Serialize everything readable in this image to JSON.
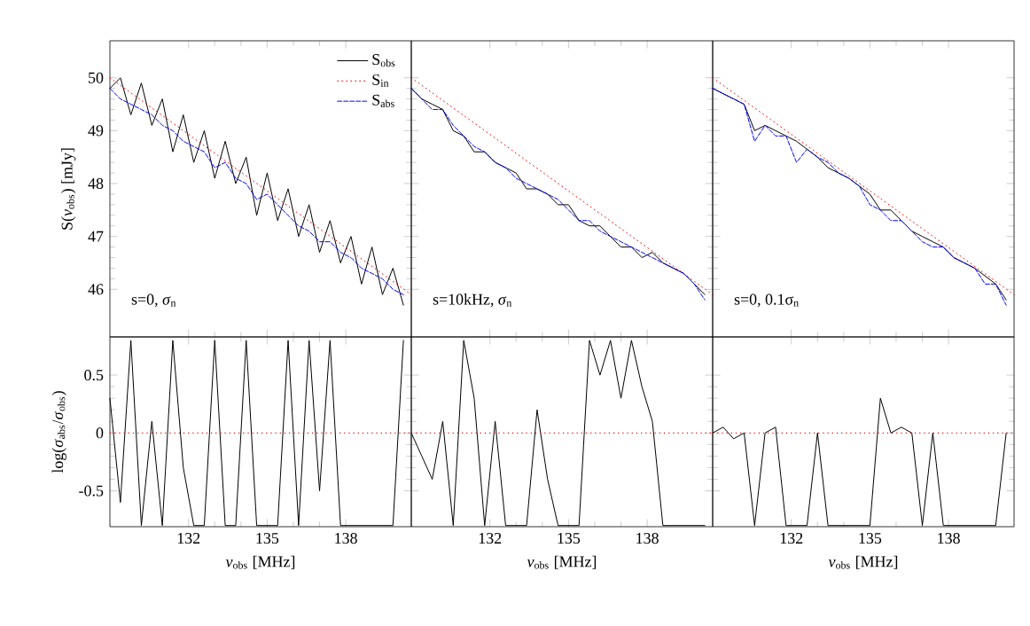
{
  "chart_data": [
    {
      "type": "line",
      "ylabel": "S(*ν*$_{obs}$) [mJy]",
      "xlim": [
        129,
        140.5
      ],
      "xticks": [
        132,
        135,
        138
      ],
      "ylim": [
        45.1,
        50.7
      ],
      "yticks": [
        46,
        47,
        48,
        49,
        50
      ],
      "tick_labels": "y",
      "legend": "top right",
      "annotations": [
        "s=0, *σ*$_{n}$"
      ],
      "series": [
        {
          "name": "S$_{obs}$",
          "color": "#000000",
          "line_style": "solid",
          "x": [
            129.0,
            129.4,
            129.8,
            130.2,
            130.6,
            131.0,
            131.4,
            131.8,
            132.2,
            132.6,
            133.0,
            133.4,
            133.8,
            134.2,
            134.6,
            135.0,
            135.4,
            135.8,
            136.2,
            136.6,
            137.0,
            137.4,
            137.8,
            138.2,
            138.6,
            139.0,
            139.4,
            139.8,
            140.2
          ],
          "values": [
            49.8,
            50.0,
            49.3,
            49.9,
            49.1,
            49.6,
            48.6,
            49.3,
            48.4,
            49.0,
            48.1,
            48.8,
            48.0,
            48.5,
            47.4,
            48.2,
            47.3,
            47.9,
            47.0,
            47.6,
            46.7,
            47.3,
            46.5,
            47.0,
            46.1,
            46.8,
            45.9,
            46.4,
            45.7
          ]
        },
        {
          "name": "S$_{in}$",
          "color": "#ff0000",
          "line_style": "dotted",
          "x": [
            129.0,
            140.5
          ],
          "values": [
            50.0,
            45.9
          ]
        },
        {
          "name": "S$_{abs}$",
          "color": "#0000ff",
          "line_style": "dashed",
          "x": [
            129.0,
            129.4,
            129.8,
            130.2,
            130.6,
            131.0,
            131.4,
            131.8,
            132.2,
            132.6,
            133.0,
            133.4,
            133.8,
            134.2,
            134.6,
            135.0,
            135.4,
            135.8,
            136.2,
            136.6,
            137.0,
            137.4,
            137.8,
            138.2,
            138.6,
            139.0,
            139.4,
            139.8,
            140.2
          ],
          "values": [
            49.8,
            49.6,
            49.5,
            49.4,
            49.3,
            49.1,
            49.0,
            48.8,
            48.7,
            48.6,
            48.3,
            48.4,
            48.1,
            48.0,
            47.7,
            47.8,
            47.6,
            47.4,
            47.2,
            47.1,
            46.9,
            46.9,
            46.7,
            46.6,
            46.4,
            46.3,
            46.2,
            46.0,
            45.9
          ]
        }
      ]
    },
    {
      "type": "line",
      "xlim": [
        129,
        140.5
      ],
      "xticks": [
        132,
        135,
        138
      ],
      "ylim": [
        45.1,
        50.7
      ],
      "yticks": [
        46,
        47,
        48,
        49,
        50
      ],
      "tick_labels": false,
      "annotations": [
        "s=10kHz, *σ*$_{n}$"
      ],
      "series": [
        {
          "color": "#000000",
          "line_style": "solid",
          "x": [
            129.0,
            129.4,
            129.8,
            130.2,
            130.6,
            131.0,
            131.4,
            131.8,
            132.2,
            132.6,
            133.0,
            133.4,
            133.8,
            134.2,
            134.6,
            135.0,
            135.4,
            135.8,
            136.2,
            136.6,
            137.0,
            137.4,
            137.8,
            138.2,
            138.6,
            139.0,
            139.4,
            139.8,
            140.2
          ],
          "values": [
            49.8,
            49.6,
            49.5,
            49.4,
            49.0,
            48.9,
            48.6,
            48.6,
            48.4,
            48.3,
            48.2,
            47.9,
            47.9,
            47.8,
            47.6,
            47.6,
            47.3,
            47.2,
            47.2,
            47.0,
            46.8,
            46.8,
            46.6,
            46.7,
            46.5,
            46.4,
            46.3,
            46.1,
            45.9
          ]
        },
        {
          "color": "#ff0000",
          "line_style": "dotted",
          "x": [
            129.0,
            140.5
          ],
          "values": [
            50.0,
            45.9
          ]
        },
        {
          "color": "#0000ff",
          "line_style": "dashed",
          "x": [
            129.0,
            129.4,
            129.8,
            130.2,
            130.6,
            131.0,
            131.4,
            131.8,
            132.2,
            132.6,
            133.0,
            133.4,
            133.8,
            134.2,
            134.6,
            135.0,
            135.4,
            135.8,
            136.2,
            136.6,
            137.0,
            137.4,
            137.8,
            138.2,
            138.6,
            139.0,
            139.4,
            139.8,
            140.2
          ],
          "values": [
            49.8,
            49.6,
            49.4,
            49.4,
            49.1,
            48.9,
            48.7,
            48.6,
            48.4,
            48.3,
            48.1,
            48.0,
            47.9,
            47.8,
            47.7,
            47.5,
            47.3,
            47.3,
            47.1,
            47.0,
            46.9,
            46.8,
            46.7,
            46.6,
            46.5,
            46.4,
            46.3,
            46.1,
            45.8
          ]
        }
      ]
    },
    {
      "type": "line",
      "xlim": [
        129,
        140.5
      ],
      "xticks": [
        132,
        135,
        138
      ],
      "ylim": [
        45.1,
        50.7
      ],
      "yticks": [
        46,
        47,
        48,
        49,
        50
      ],
      "tick_labels": false,
      "annotations": [
        "s=0, 0.1σ$_{n}$"
      ],
      "series": [
        {
          "color": "#000000",
          "line_style": "solid",
          "x": [
            129.0,
            129.4,
            129.8,
            130.2,
            130.6,
            131.0,
            131.4,
            131.8,
            132.2,
            132.6,
            133.0,
            133.4,
            133.8,
            134.2,
            134.6,
            135.0,
            135.4,
            135.8,
            136.2,
            136.6,
            137.0,
            137.4,
            137.8,
            138.2,
            138.6,
            139.0,
            139.4,
            139.8,
            140.2
          ],
          "values": [
            49.8,
            49.7,
            49.6,
            49.5,
            49.0,
            49.1,
            49.0,
            48.9,
            48.8,
            48.65,
            48.5,
            48.3,
            48.2,
            48.1,
            47.95,
            47.8,
            47.5,
            47.5,
            47.3,
            47.1,
            47.0,
            46.9,
            46.8,
            46.6,
            46.5,
            46.4,
            46.25,
            46.1,
            45.8
          ]
        },
        {
          "color": "#ff0000",
          "line_style": "dotted",
          "x": [
            129.0,
            140.5
          ],
          "values": [
            50.0,
            45.9
          ]
        },
        {
          "color": "#0000ff",
          "line_style": "dashed",
          "x": [
            129.0,
            129.4,
            129.8,
            130.2,
            130.6,
            131.0,
            131.4,
            131.8,
            132.2,
            132.6,
            133.0,
            133.4,
            133.8,
            134.2,
            134.6,
            135.0,
            135.4,
            135.8,
            136.2,
            136.6,
            137.0,
            137.4,
            137.8,
            138.2,
            138.6,
            139.0,
            139.4,
            139.8,
            140.2
          ],
          "values": [
            49.8,
            49.7,
            49.6,
            49.5,
            48.8,
            49.1,
            48.9,
            48.9,
            48.4,
            48.65,
            48.5,
            48.4,
            48.2,
            48.1,
            47.95,
            47.6,
            47.5,
            47.3,
            47.3,
            47.1,
            46.9,
            46.8,
            46.8,
            46.6,
            46.5,
            46.4,
            46.1,
            46.1,
            45.7
          ]
        }
      ]
    },
    {
      "type": "line",
      "xlabel": "*ν*$_{obs}$ [MHz]",
      "ylabel": "log(*σ*$_{abs}$/*σ*$_{obs}$)",
      "xlim": [
        129,
        140.5
      ],
      "xticks": [
        132,
        135,
        138
      ],
      "ylim": [
        -0.81,
        0.83
      ],
      "yticks": [
        -0.5,
        0,
        0.5
      ],
      "ref_lines": [
        {
          "axis": "y",
          "value": 0,
          "color": "#ff0000",
          "line_style": "dotted"
        }
      ],
      "series": [
        {
          "color": "#000000",
          "line_style": "solid",
          "x": [
            129.0,
            129.4,
            129.8,
            130.2,
            130.6,
            131.0,
            131.4,
            131.8,
            132.2,
            132.6,
            133.0,
            133.4,
            133.8,
            134.2,
            134.6,
            135.0,
            135.4,
            135.8,
            136.2,
            136.6,
            137.0,
            137.4,
            137.8,
            138.2,
            138.6,
            139.0,
            139.4,
            139.8,
            140.2
          ],
          "values": [
            0.3,
            -0.6,
            0.8,
            -0.8,
            0.1,
            -0.8,
            0.8,
            -0.3,
            -0.8,
            -0.8,
            0.8,
            -0.8,
            -0.8,
            0.8,
            -0.8,
            -0.8,
            -0.8,
            0.8,
            -0.8,
            0.8,
            -0.5,
            0.8,
            -0.8,
            -0.8,
            -0.8,
            -0.8,
            -0.8,
            -0.8,
            0.8
          ]
        }
      ]
    },
    {
      "type": "line",
      "xlabel": "*ν*$_{obs}$ [MHz]",
      "xlim": [
        129,
        140.5
      ],
      "xticks": [
        132,
        135,
        138
      ],
      "ylim": [
        -0.81,
        0.83
      ],
      "yticks": [
        -0.5,
        0,
        0.5
      ],
      "tick_labels": "x",
      "ref_lines": [
        {
          "axis": "y",
          "value": 0,
          "color": "#ff0000",
          "line_style": "dotted"
        }
      ],
      "series": [
        {
          "color": "#000000",
          "line_style": "solid",
          "x": [
            129.0,
            129.4,
            129.8,
            130.2,
            130.6,
            131.0,
            131.4,
            131.8,
            132.2,
            132.6,
            133.0,
            133.4,
            133.8,
            134.2,
            134.6,
            135.0,
            135.4,
            135.8,
            136.2,
            136.6,
            137.0,
            137.4,
            137.8,
            138.2,
            138.6,
            139.0,
            139.4,
            139.8,
            140.2
          ],
          "values": [
            0.0,
            -0.2,
            -0.4,
            0.1,
            -0.8,
            0.8,
            0.3,
            -0.8,
            0.1,
            -0.8,
            -0.8,
            -0.8,
            0.2,
            -0.4,
            -0.8,
            -0.8,
            -0.8,
            0.8,
            0.5,
            0.8,
            0.3,
            0.8,
            0.4,
            0.1,
            -0.8,
            -0.8,
            -0.8,
            -0.8,
            -0.8
          ]
        }
      ]
    },
    {
      "type": "line",
      "xlabel": "*ν*$_{obs}$ [MHz]",
      "xlim": [
        129,
        140.5
      ],
      "xticks": [
        132,
        135,
        138
      ],
      "ylim": [
        -0.81,
        0.83
      ],
      "yticks": [
        -0.5,
        0,
        0.5
      ],
      "tick_labels": "x",
      "ref_lines": [
        {
          "axis": "y",
          "value": 0,
          "color": "#ff0000",
          "line_style": "dotted"
        }
      ],
      "series": [
        {
          "color": "#000000",
          "line_style": "solid",
          "x": [
            129.0,
            129.4,
            129.8,
            130.2,
            130.6,
            131.0,
            131.4,
            131.8,
            132.2,
            132.6,
            133.0,
            133.4,
            133.8,
            134.2,
            134.6,
            135.0,
            135.4,
            135.8,
            136.2,
            136.6,
            137.0,
            137.4,
            137.8,
            138.2,
            138.6,
            139.0,
            139.4,
            139.8,
            140.2
          ],
          "values": [
            0.0,
            0.05,
            -0.05,
            0.0,
            -0.8,
            0.0,
            0.05,
            -0.8,
            -0.8,
            -0.8,
            0.0,
            -0.8,
            -0.8,
            -0.8,
            -0.8,
            -0.8,
            0.3,
            0.0,
            0.05,
            0.0,
            -0.8,
            0.0,
            -0.8,
            -0.8,
            -0.8,
            -0.8,
            -0.8,
            -0.8,
            0.0
          ]
        }
      ]
    }
  ]
}
